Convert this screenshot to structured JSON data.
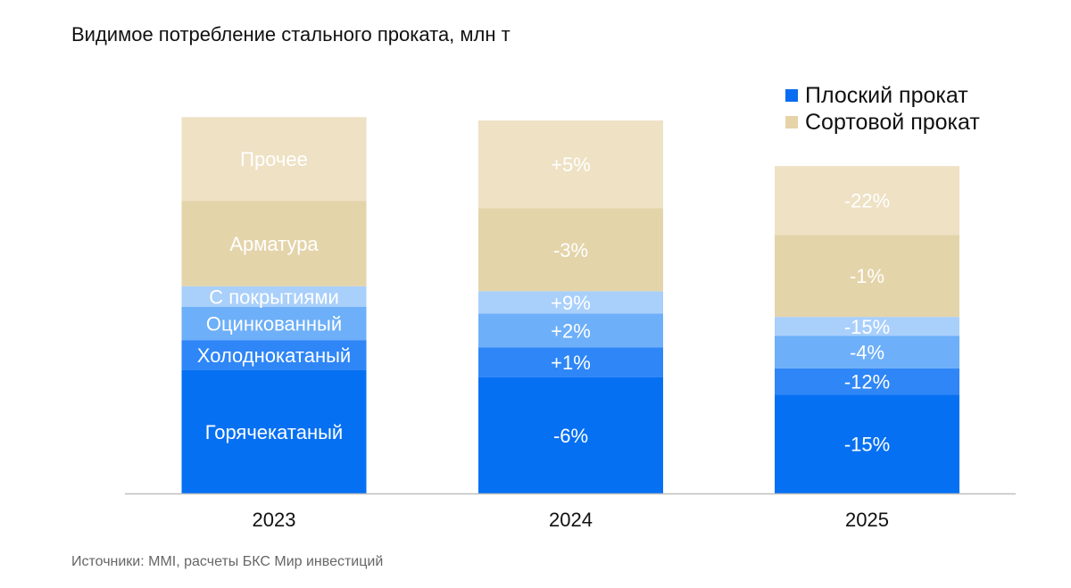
{
  "title": "Видимое потребление стального проката, млн т",
  "source": "Источники: MMI, расчеты БКС Мир инвестиций",
  "legend": [
    {
      "label": "Плоский прокат",
      "color": "#0A6CF0"
    },
    {
      "label": "Сортовой прокат",
      "color": "#E6D4A8"
    }
  ],
  "chart_data": {
    "type": "bar",
    "stacked": true,
    "categories": [
      "2023",
      "2024",
      "2025"
    ],
    "ylim": [
      0,
      45
    ],
    "grid": false,
    "legend_position": "top-right",
    "series": [
      {
        "name": "Горячекатаный",
        "group": "Плоский прокат",
        "color": "#0670F2",
        "values": [
          14.9,
          14.0,
          11.9
        ],
        "labels": [
          "Горячекатаный",
          "-6%",
          "-15%"
        ]
      },
      {
        "name": "Холоднокатаный",
        "group": "Плоский прокат",
        "color": "#2E86F7",
        "values": [
          3.6,
          3.6,
          3.2
        ],
        "labels": [
          "Холоднокатаный",
          "+1%",
          "-12%"
        ]
      },
      {
        "name": "Оцинкованный",
        "group": "Плоский прокат",
        "color": "#6DAFF8",
        "values": [
          4.0,
          4.1,
          3.9
        ],
        "labels": [
          "Оцинкованный",
          "+2%",
          "-4%"
        ]
      },
      {
        "name": "С покрытиями",
        "group": "Плоский прокат",
        "color": "#A9CFFB",
        "values": [
          2.5,
          2.7,
          2.3
        ],
        "labels": [
          "С покрытиями",
          "+9%",
          "-15%"
        ]
      },
      {
        "name": "Арматура",
        "group": "Сортовой прокат",
        "color": "#E4D4AA",
        "values": [
          10.3,
          10.0,
          9.9
        ],
        "labels": [
          "Арматура",
          "-3%",
          "-1%"
        ]
      },
      {
        "name": "Прочее",
        "group": "Сортовой прокат",
        "color": "#EEE1C4",
        "values": [
          10.1,
          10.6,
          8.3
        ],
        "labels": [
          "Прочее",
          "+5%",
          "-22%"
        ]
      }
    ]
  }
}
